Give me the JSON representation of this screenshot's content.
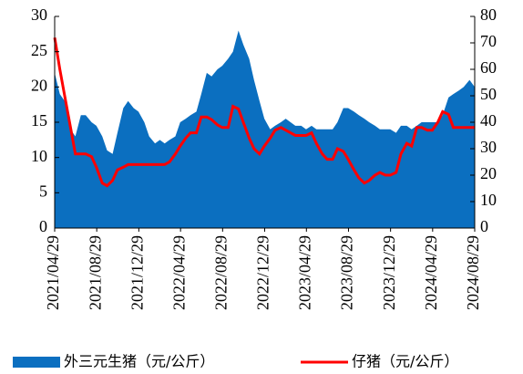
{
  "chart_data": {
    "type": "area_line",
    "x": [
      "2021/04/29",
      "2021/05/14",
      "2021/05/28",
      "2021/06/14",
      "2021/06/28",
      "2021/07/14",
      "2021/07/28",
      "2021/08/14",
      "2021/08/28",
      "2021/09/14",
      "2021/09/28",
      "2021/10/14",
      "2021/10/28",
      "2021/11/14",
      "2021/11/28",
      "2021/12/14",
      "2021/12/28",
      "2022/01/14",
      "2022/01/28",
      "2022/02/14",
      "2022/02/28",
      "2022/03/14",
      "2022/03/28",
      "2022/04/14",
      "2022/04/28",
      "2022/05/14",
      "2022/05/28",
      "2022/06/14",
      "2022/06/28",
      "2022/07/14",
      "2022/07/28",
      "2022/08/14",
      "2022/08/28",
      "2022/09/14",
      "2022/09/28",
      "2022/10/14",
      "2022/10/28",
      "2022/11/14",
      "2022/11/28",
      "2022/12/14",
      "2022/12/28",
      "2023/01/14",
      "2023/01/28",
      "2023/02/14",
      "2023/02/28",
      "2023/03/14",
      "2023/03/28",
      "2023/04/14",
      "2023/04/28",
      "2023/05/14",
      "2023/05/28",
      "2023/06/14",
      "2023/06/28",
      "2023/07/14",
      "2023/07/28",
      "2023/08/14",
      "2023/08/28",
      "2023/09/14",
      "2023/09/28",
      "2023/10/14",
      "2023/10/28",
      "2023/11/14",
      "2023/11/28",
      "2023/12/14",
      "2023/12/28",
      "2024/01/14",
      "2024/01/28",
      "2024/02/14",
      "2024/02/28",
      "2024/03/14",
      "2024/03/28",
      "2024/04/14",
      "2024/04/28",
      "2024/05/14",
      "2024/05/28",
      "2024/06/14",
      "2024/06/28",
      "2024/07/14",
      "2024/07/28",
      "2024/08/14",
      "2024/08/29"
    ],
    "series": [
      {
        "name": "外三元生猪（元/公斤）",
        "color": "#0b6fc0",
        "kind": "area",
        "values": [
          22,
          19,
          18,
          14,
          13,
          16,
          16,
          15,
          14.5,
          13,
          11,
          10.5,
          13.5,
          17,
          18,
          17,
          16.5,
          15,
          13,
          12,
          12.5,
          12,
          12.5,
          13,
          15,
          15.5,
          16,
          16.5,
          19,
          22,
          21.5,
          22.5,
          23,
          24,
          25,
          28,
          26,
          24,
          21,
          18,
          15.5,
          14,
          14.5,
          15,
          15.5,
          15,
          14.5,
          14.5,
          14,
          14.5,
          14,
          14,
          14,
          14,
          15,
          17,
          17,
          16.5,
          16,
          15.5,
          15,
          14.5,
          14,
          14,
          14,
          13.5,
          14.5,
          14.5,
          14,
          14.5,
          15,
          15,
          15,
          15,
          16,
          18.5,
          19,
          19.5,
          20,
          21,
          20
        ]
      },
      {
        "name": "仔猪（元/公斤）",
        "color": "#ff0000",
        "kind": "line",
        "axis": "y2",
        "values": [
          72,
          60,
          50,
          38,
          28,
          28,
          28,
          27,
          23,
          17,
          16,
          18,
          22,
          23,
          24,
          24,
          24,
          24,
          24,
          24,
          24,
          24,
          25,
          28,
          31,
          34,
          36,
          36,
          42,
          42,
          41,
          39,
          38,
          38,
          46,
          45,
          40,
          34,
          30,
          28,
          31,
          34,
          37,
          38,
          37,
          36,
          35,
          35,
          35,
          36,
          32,
          28,
          26,
          26,
          30,
          29,
          26,
          22,
          19,
          17,
          18,
          20,
          21,
          20,
          20,
          21,
          28,
          32,
          31,
          38,
          38,
          37,
          37,
          40,
          44,
          43,
          38,
          38,
          38,
          38,
          38
        ]
      }
    ],
    "xlim": [
      "2021/04/29",
      "2024/08/29"
    ],
    "xticks": [
      "2021/04/29",
      "2021/08/29",
      "2021/12/29",
      "2022/04/29",
      "2022/08/29",
      "2022/12/29",
      "2023/04/29",
      "2023/08/29",
      "2023/12/29",
      "2024/04/29",
      "2024/08/29"
    ],
    "ylim": [
      0,
      30
    ],
    "yticks": [
      0,
      5,
      10,
      15,
      20,
      25,
      30
    ],
    "y2lim": [
      0,
      80
    ],
    "y2ticks": [
      0,
      10,
      20,
      30,
      40,
      50,
      60,
      70,
      80
    ],
    "legend": "bottom"
  }
}
